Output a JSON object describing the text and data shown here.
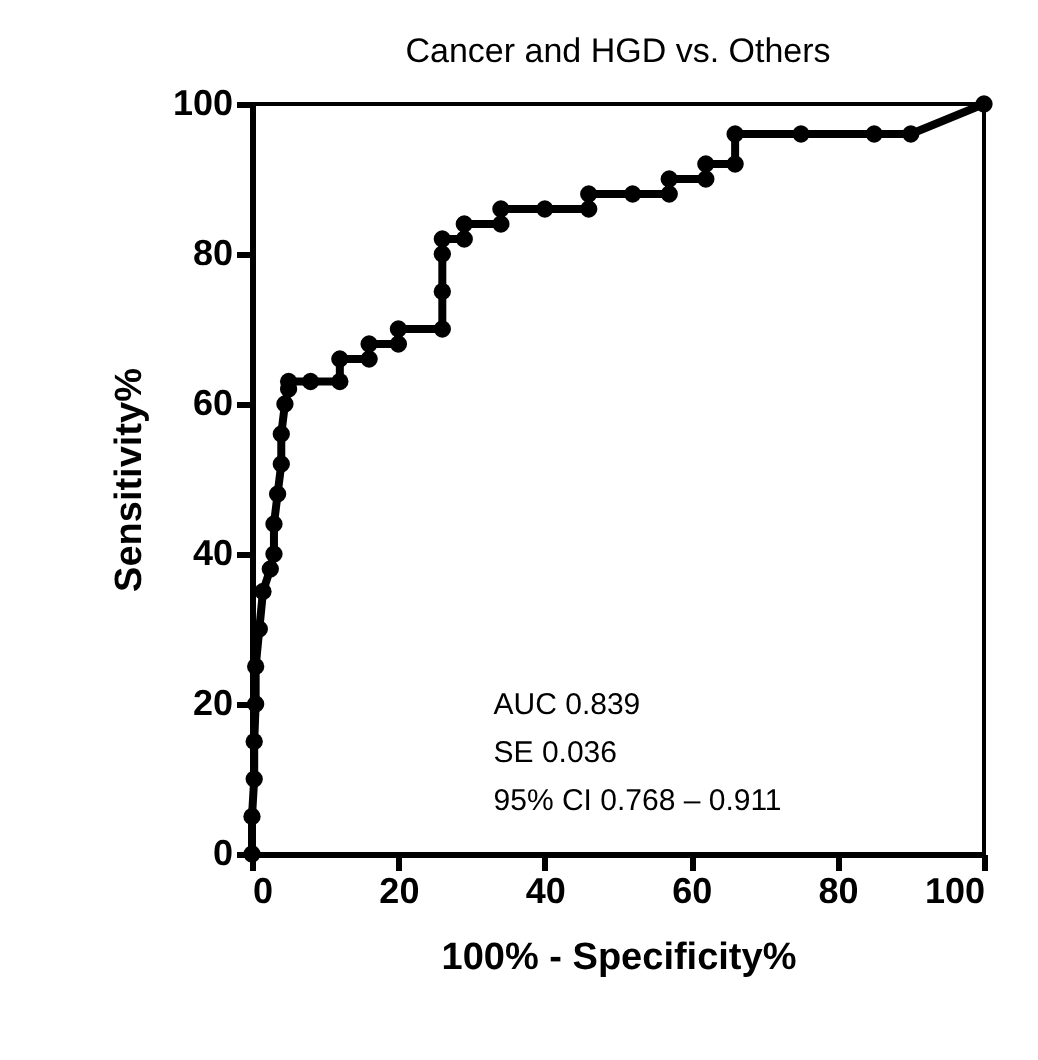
{
  "chart_data": {
    "type": "line",
    "title": "Cancer and HGD  vs. Others",
    "xlabel": "100% - Specificity%",
    "ylabel": "Sensitivity%",
    "x": [
      0,
      0,
      0.3,
      0.3,
      0.5,
      0.5,
      1,
      1.5,
      2.5,
      3,
      3,
      3.5,
      4,
      4,
      4.5,
      5,
      5,
      8,
      12,
      12,
      16,
      16,
      20,
      20,
      26,
      26,
      26,
      26,
      29,
      29,
      34,
      34,
      40,
      46,
      46,
      52,
      57,
      57,
      62,
      62,
      66,
      66,
      75,
      85,
      90,
      100
    ],
    "series": [
      {
        "color": "#000000",
        "values": [
          0,
          5,
          10,
          15,
          20,
          25,
          30,
          35,
          38,
          40,
          44,
          48,
          52,
          56,
          60,
          62,
          63,
          63,
          63,
          66,
          66,
          68,
          68,
          70,
          70,
          75,
          80,
          82,
          82,
          84,
          84,
          86,
          86,
          86,
          88,
          88,
          88,
          90,
          90,
          92,
          92,
          96,
          96,
          96,
          96,
          100
        ]
      }
    ],
    "xlim": [
      0,
      100
    ],
    "ylim": [
      0,
      100
    ],
    "xticks": [
      0,
      20,
      40,
      60,
      80,
      100
    ],
    "yticks": [
      0,
      20,
      40,
      60,
      80,
      100
    ],
    "marker": "circle",
    "line_style": "solid",
    "annotations": [
      "AUC        0.839",
      "SE          0.036",
      "95% CI   0.768 – 0.911"
    ]
  }
}
